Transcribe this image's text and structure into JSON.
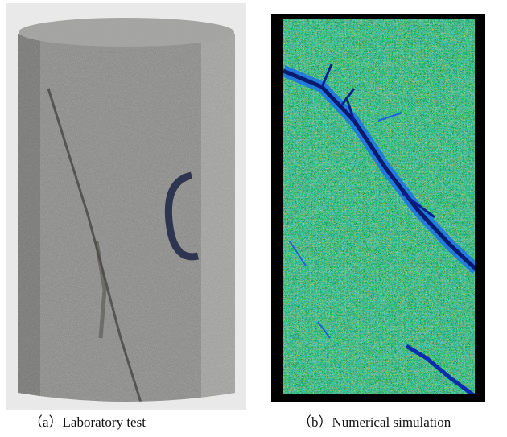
{
  "figure": {
    "panels": [
      {
        "caption": "（a）Laboratory test"
      },
      {
        "caption": "（b）Numerical simulation"
      }
    ]
  }
}
